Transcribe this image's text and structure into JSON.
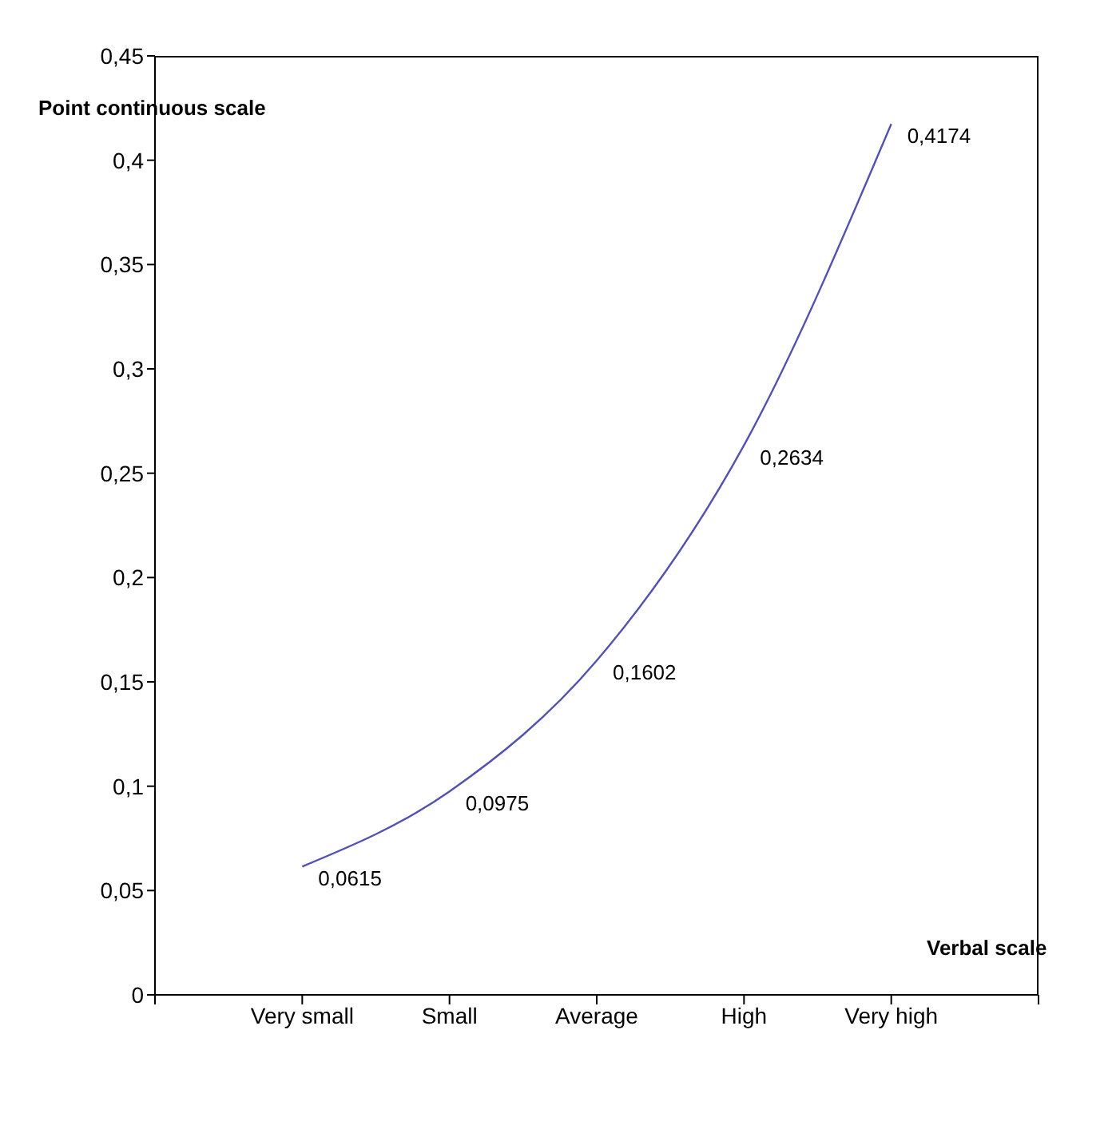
{
  "chart_data": {
    "type": "line",
    "xlabel": "Verbal scale",
    "ylabel": "Point continuous scale",
    "categories": [
      "Very small",
      "Small",
      "Average",
      "High",
      "Very high"
    ],
    "series": [
      {
        "color": "#5252b0",
        "values": [
          0.0615,
          0.0975,
          0.1602,
          0.2634,
          0.4174
        ],
        "value_labels": [
          "0,0615",
          "0,0975",
          "0,1602",
          "0,2634",
          "0,4174"
        ]
      }
    ],
    "ylim": [
      0,
      0.45
    ],
    "yticks": [
      {
        "value": 0,
        "label": "0"
      },
      {
        "value": 0.05,
        "label": "0,05"
      },
      {
        "value": 0.1,
        "label": "0,1"
      },
      {
        "value": 0.15,
        "label": "0,15"
      },
      {
        "value": 0.2,
        "label": "0,2"
      },
      {
        "value": 0.25,
        "label": "0,25"
      },
      {
        "value": 0.3,
        "label": "0,3"
      },
      {
        "value": 0.35,
        "label": "0,35"
      },
      {
        "value": 0.4,
        "label": "0,4"
      },
      {
        "value": 0.45,
        "label": "0,45"
      }
    ],
    "grid": false,
    "legend": false,
    "marker": "none",
    "line_style": "solid"
  }
}
